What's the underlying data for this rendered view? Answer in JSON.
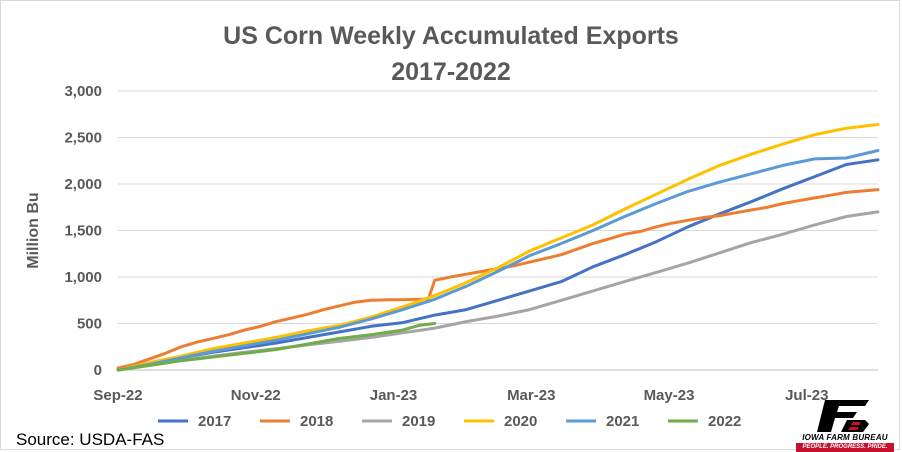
{
  "chart_data": {
    "type": "line",
    "title": "US Corn Weekly Accumulated Exports",
    "subtitle": "2017-2022",
    "ylabel": "Million Bu",
    "ylim": [
      0,
      3000
    ],
    "yticks": [
      0,
      500,
      1000,
      1500,
      2000,
      2500,
      3000
    ],
    "ytick_labels": [
      "0",
      "500",
      "1,000",
      "1,500",
      "2,000",
      "2,500",
      "3,000"
    ],
    "xlim": [
      0,
      48
    ],
    "xtick_positions": [
      0,
      8.7,
      17.4,
      26.1,
      34.8,
      43.5
    ],
    "xtick_labels": [
      "Sep-22",
      "Nov-22",
      "Jan-23",
      "Mar-23",
      "May-23",
      "Jul-23"
    ],
    "grid": true,
    "legend_position": "bottom",
    "series": [
      {
        "name": "2017",
        "color": "#4472c4",
        "x": [
          0,
          2,
          4,
          6,
          8,
          10,
          12,
          14,
          16,
          18,
          20,
          22,
          24,
          26,
          28,
          30,
          32,
          34,
          36,
          38,
          40,
          42,
          44,
          46,
          48
        ],
        "y": [
          0,
          60,
          130,
          190,
          240,
          290,
          350,
          410,
          470,
          510,
          590,
          650,
          750,
          850,
          950,
          1110,
          1240,
          1380,
          1540,
          1680,
          1810,
          1950,
          2080,
          2210,
          2260
        ]
      },
      {
        "name": "2018",
        "color": "#ed7d31",
        "x": [
          0,
          1,
          2,
          3,
          4,
          5,
          6,
          7,
          8,
          9,
          10,
          11,
          12,
          13,
          14,
          15,
          16,
          17,
          18,
          19,
          19.6,
          20,
          21,
          22,
          23,
          24,
          25,
          26,
          27,
          28,
          29,
          30,
          31,
          32,
          33,
          34,
          35,
          36,
          37,
          38,
          39,
          40,
          41,
          42,
          43,
          44,
          45,
          46,
          47,
          48
        ],
        "y": [
          20,
          60,
          120,
          180,
          250,
          300,
          340,
          380,
          430,
          470,
          520,
          560,
          600,
          650,
          690,
          730,
          750,
          755,
          755,
          760,
          760,
          965,
          1000,
          1030,
          1060,
          1090,
          1120,
          1160,
          1200,
          1240,
          1300,
          1360,
          1410,
          1460,
          1490,
          1540,
          1580,
          1610,
          1640,
          1660,
          1690,
          1720,
          1750,
          1790,
          1820,
          1850,
          1880,
          1910,
          1925,
          1940
        ]
      },
      {
        "name": "2019",
        "color": "#a5a5a5",
        "x": [
          0,
          2,
          4,
          6,
          8,
          10,
          12,
          14,
          16,
          18,
          20,
          22,
          24,
          26,
          28,
          30,
          32,
          34,
          36,
          38,
          40,
          42,
          44,
          46,
          48
        ],
        "y": [
          0,
          50,
          100,
          150,
          190,
          230,
          270,
          310,
          350,
          400,
          450,
          520,
          580,
          650,
          750,
          850,
          950,
          1050,
          1150,
          1260,
          1370,
          1460,
          1560,
          1650,
          1700
        ]
      },
      {
        "name": "2020",
        "color": "#ffc000",
        "x": [
          0,
          2,
          4,
          6,
          8,
          10,
          12,
          14,
          16,
          18,
          20,
          22,
          24,
          26,
          28,
          30,
          32,
          34,
          36,
          38,
          40,
          42,
          44,
          46,
          48
        ],
        "y": [
          0,
          80,
          150,
          230,
          290,
          350,
          420,
          480,
          570,
          680,
          800,
          940,
          1100,
          1280,
          1420,
          1560,
          1730,
          1890,
          2050,
          2200,
          2320,
          2430,
          2530,
          2600,
          2640
        ]
      },
      {
        "name": "2021",
        "color": "#5b9bd5",
        "x": [
          0,
          2,
          4,
          6,
          8,
          10,
          12,
          14,
          16,
          18,
          20,
          22,
          24,
          26,
          28,
          30,
          32,
          34,
          36,
          38,
          40,
          42,
          44,
          46,
          48
        ],
        "y": [
          0,
          60,
          130,
          200,
          260,
          320,
          390,
          460,
          550,
          650,
          760,
          900,
          1060,
          1230,
          1360,
          1500,
          1650,
          1790,
          1920,
          2020,
          2110,
          2200,
          2270,
          2280,
          2360
        ]
      },
      {
        "name": "2022",
        "color": "#70ad47",
        "x": [
          0,
          2,
          4,
          6,
          8,
          10,
          12,
          14,
          16,
          18,
          19,
          20
        ],
        "y": [
          0,
          50,
          100,
          140,
          180,
          220,
          280,
          340,
          380,
          430,
          480,
          500
        ]
      }
    ]
  },
  "source": "Source: USDA-FAS",
  "logo": {
    "mark": "FB",
    "name": "IOWA FARM BUREAU",
    "tagline": "PEOPLE. PROGRESS. PRIDE.",
    "brand_color": "#c8102e",
    "icon": "iowa-farm-bureau-logo"
  }
}
